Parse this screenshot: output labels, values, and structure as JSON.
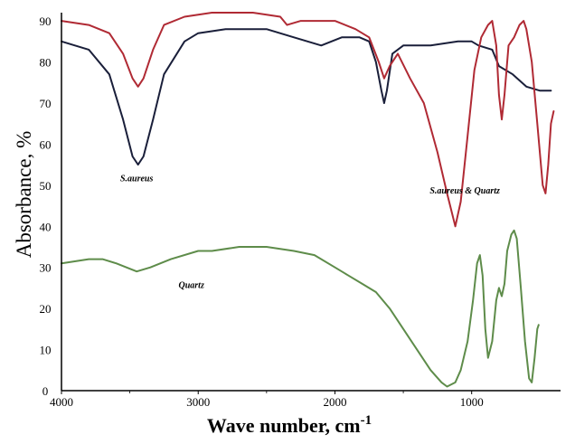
{
  "chart_data": {
    "type": "line",
    "title": "",
    "xlabel": "Wave number, cm",
    "xlabel_exp": "-1",
    "ylabel": "Absorbance, %",
    "xlim": [
      4000,
      350
    ],
    "ylim": [
      0,
      92
    ],
    "x_ticks": [
      4000,
      3000,
      2000,
      1000
    ],
    "x_tick_labels": [
      "4000",
      "3000",
      "2000",
      "1000"
    ],
    "y_ticks": [
      90,
      80,
      70,
      60,
      50,
      40,
      30,
      20,
      10,
      0
    ],
    "y_tick_labels": [
      "90",
      "80",
      "70",
      "60",
      "50",
      "40",
      "30",
      "20",
      "10",
      "0"
    ],
    "annotations": [
      {
        "text": "S.aureus",
        "x": 3450,
        "y": 51
      },
      {
        "text": "S.aureus & Quartz",
        "x": 1050,
        "y": 48
      },
      {
        "text": "Quartz",
        "x": 3050,
        "y": 25
      }
    ],
    "series": [
      {
        "name": "S.aureus",
        "color": "#1a1f3a",
        "points": [
          [
            4000,
            85
          ],
          [
            3800,
            83
          ],
          [
            3650,
            77
          ],
          [
            3550,
            66
          ],
          [
            3480,
            57
          ],
          [
            3440,
            55
          ],
          [
            3400,
            57
          ],
          [
            3330,
            66
          ],
          [
            3250,
            77
          ],
          [
            3100,
            85
          ],
          [
            3000,
            87
          ],
          [
            2800,
            88
          ],
          [
            2500,
            88
          ],
          [
            2300,
            86
          ],
          [
            2100,
            84
          ],
          [
            1950,
            86
          ],
          [
            1820,
            86
          ],
          [
            1750,
            85
          ],
          [
            1700,
            80
          ],
          [
            1660,
            73
          ],
          [
            1640,
            70
          ],
          [
            1620,
            73
          ],
          [
            1580,
            82
          ],
          [
            1500,
            84
          ],
          [
            1300,
            84
          ],
          [
            1100,
            85
          ],
          [
            1000,
            85
          ],
          [
            950,
            84
          ],
          [
            850,
            83
          ],
          [
            800,
            79
          ],
          [
            700,
            77
          ],
          [
            600,
            74
          ],
          [
            500,
            73
          ],
          [
            420,
            73
          ]
        ]
      },
      {
        "name": "S.aureus & Quartz",
        "color": "#b02a34",
        "points": [
          [
            4000,
            90
          ],
          [
            3800,
            89
          ],
          [
            3650,
            87
          ],
          [
            3550,
            82
          ],
          [
            3480,
            76
          ],
          [
            3440,
            74
          ],
          [
            3400,
            76
          ],
          [
            3330,
            83
          ],
          [
            3250,
            89
          ],
          [
            3100,
            91
          ],
          [
            2900,
            92
          ],
          [
            2600,
            92
          ],
          [
            2400,
            91
          ],
          [
            2350,
            89
          ],
          [
            2250,
            90
          ],
          [
            2000,
            90
          ],
          [
            1850,
            88
          ],
          [
            1750,
            86
          ],
          [
            1680,
            80
          ],
          [
            1640,
            76
          ],
          [
            1600,
            79
          ],
          [
            1540,
            82
          ],
          [
            1450,
            76
          ],
          [
            1350,
            70
          ],
          [
            1250,
            58
          ],
          [
            1180,
            48
          ],
          [
            1120,
            40
          ],
          [
            1080,
            46
          ],
          [
            1030,
            62
          ],
          [
            980,
            78
          ],
          [
            930,
            86
          ],
          [
            880,
            89
          ],
          [
            850,
            90
          ],
          [
            820,
            84
          ],
          [
            800,
            72
          ],
          [
            780,
            66
          ],
          [
            760,
            72
          ],
          [
            730,
            84
          ],
          [
            690,
            86
          ],
          [
            650,
            89
          ],
          [
            620,
            90
          ],
          [
            600,
            88
          ],
          [
            560,
            80
          ],
          [
            520,
            65
          ],
          [
            480,
            50
          ],
          [
            460,
            48
          ],
          [
            440,
            55
          ],
          [
            420,
            65
          ],
          [
            400,
            68
          ]
        ]
      },
      {
        "name": "Quartz",
        "color": "#5e8c4a",
        "points": [
          [
            4000,
            31
          ],
          [
            3800,
            32
          ],
          [
            3700,
            32
          ],
          [
            3600,
            31
          ],
          [
            3450,
            29
          ],
          [
            3350,
            30
          ],
          [
            3200,
            32
          ],
          [
            3000,
            34
          ],
          [
            2900,
            34
          ],
          [
            2700,
            35
          ],
          [
            2500,
            35
          ],
          [
            2300,
            34
          ],
          [
            2150,
            33
          ],
          [
            2000,
            30
          ],
          [
            1900,
            28
          ],
          [
            1800,
            26
          ],
          [
            1700,
            24
          ],
          [
            1600,
            20
          ],
          [
            1500,
            15
          ],
          [
            1400,
            10
          ],
          [
            1300,
            5
          ],
          [
            1220,
            2
          ],
          [
            1180,
            1
          ],
          [
            1120,
            2
          ],
          [
            1080,
            5
          ],
          [
            1030,
            12
          ],
          [
            990,
            22
          ],
          [
            960,
            31
          ],
          [
            940,
            33
          ],
          [
            920,
            28
          ],
          [
            900,
            15
          ],
          [
            880,
            8
          ],
          [
            850,
            12
          ],
          [
            820,
            22
          ],
          [
            800,
            25
          ],
          [
            780,
            23
          ],
          [
            760,
            26
          ],
          [
            740,
            34
          ],
          [
            710,
            38
          ],
          [
            690,
            39
          ],
          [
            670,
            37
          ],
          [
            640,
            25
          ],
          [
            610,
            12
          ],
          [
            580,
            3
          ],
          [
            560,
            2
          ],
          [
            540,
            8
          ],
          [
            520,
            15
          ],
          [
            510,
            16
          ]
        ]
      }
    ]
  }
}
